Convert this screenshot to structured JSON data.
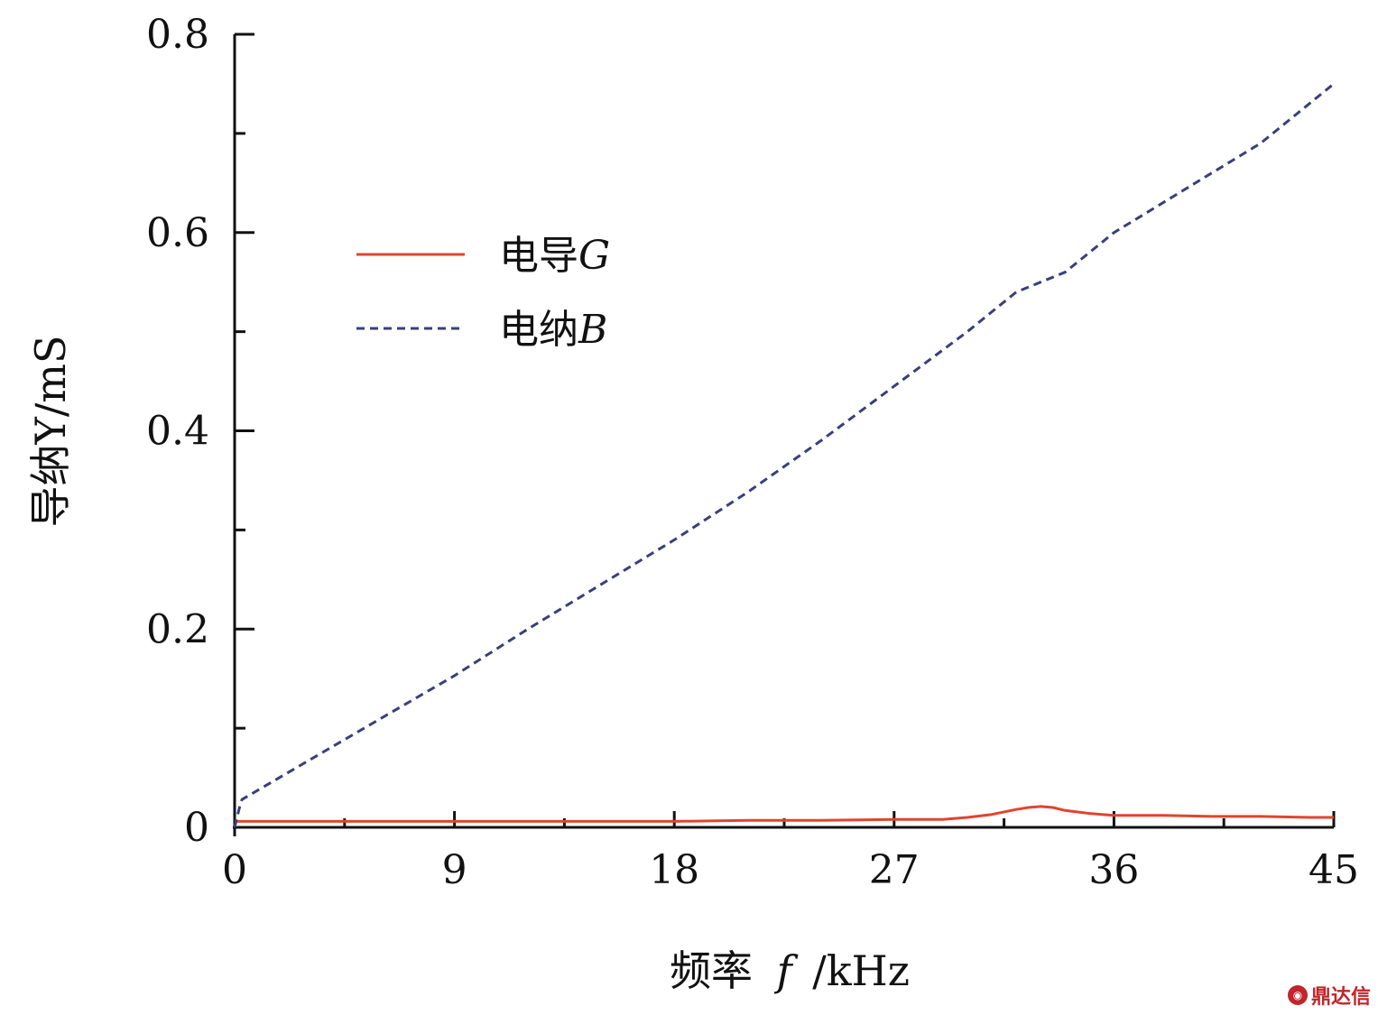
{
  "chart_data": {
    "type": "line",
    "xlabel": {
      "prefix": "频率",
      "symbol": "f",
      "unit": "/kHz"
    },
    "ylabel": "导纳Y/mS",
    "xlim": [
      0,
      45
    ],
    "ylim": [
      0,
      0.8
    ],
    "x_ticks": [
      "0",
      "9",
      "18",
      "27",
      "36",
      "45"
    ],
    "y_ticks": [
      "0",
      "0.2",
      "0.4",
      "0.6",
      "0.8"
    ],
    "legend_position": "upper-left",
    "grid": false,
    "series": [
      {
        "name": "电导G",
        "name_prefix": "电导",
        "name_symbol": "G",
        "color": "#e0452e",
        "style": "solid",
        "x": [
          0,
          3,
          6,
          9,
          12,
          15,
          18,
          21,
          24,
          27,
          29,
          30,
          31,
          32,
          32.5,
          33,
          33.5,
          34,
          35,
          36,
          38,
          40,
          42,
          44,
          45
        ],
        "y": [
          0.006,
          0.006,
          0.006,
          0.006,
          0.006,
          0.006,
          0.006,
          0.007,
          0.007,
          0.008,
          0.008,
          0.01,
          0.013,
          0.018,
          0.02,
          0.021,
          0.02,
          0.017,
          0.014,
          0.012,
          0.012,
          0.011,
          0.011,
          0.01,
          0.01
        ]
      },
      {
        "name": "电纳B",
        "name_prefix": "电纳",
        "name_symbol": "B",
        "color": "#3a3f7a",
        "style": "dashed",
        "x": [
          0,
          0.2,
          0.3,
          3,
          6,
          9,
          12,
          15,
          18,
          21,
          24,
          27,
          30,
          32,
          34,
          36,
          39,
          42,
          45
        ],
        "y": [
          0,
          0.02,
          0.028,
          0.067,
          0.11,
          0.153,
          0.2,
          0.245,
          0.29,
          0.338,
          0.39,
          0.445,
          0.5,
          0.54,
          0.56,
          0.6,
          0.645,
          0.69,
          0.75
        ]
      }
    ]
  },
  "watermark": {
    "text": "鼎达信",
    "logo": ""
  }
}
